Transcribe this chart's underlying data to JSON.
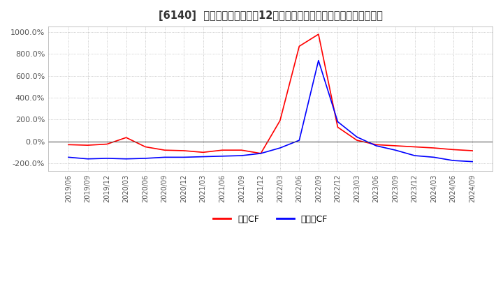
{
  "title": "[6140]  キャッシュフローの12か月移動合計の対前年同期増減率の推移",
  "background_color": "#ffffff",
  "plot_bg_color": "#ffffff",
  "legend_labels": [
    "営業CF",
    "フリーCF"
  ],
  "line_colors": [
    "#ff0000",
    "#0000ff"
  ],
  "ylim": [
    -270,
    1050
  ],
  "yticks": [
    -200,
    0,
    200,
    400,
    600,
    800,
    1000
  ],
  "ytick_labels": [
    "-200.0%",
    "0.0%",
    "200.0%",
    "400.0%",
    "600.0%",
    "800.0%",
    "1000.0%"
  ],
  "dates": [
    "2019/06",
    "2019/09",
    "2019/12",
    "2020/03",
    "2020/06",
    "2020/09",
    "2020/12",
    "2021/03",
    "2021/06",
    "2021/09",
    "2021/12",
    "2022/03",
    "2022/06",
    "2022/09",
    "2022/12",
    "2023/03",
    "2023/06",
    "2023/09",
    "2023/12",
    "2024/03",
    "2024/06",
    "2024/09"
  ],
  "operating_cf": [
    -30,
    -35,
    -25,
    35,
    -50,
    -80,
    -85,
    -100,
    -80,
    -80,
    -110,
    190,
    870,
    980,
    130,
    10,
    -30,
    -40,
    -50,
    -60,
    -75,
    -85
  ],
  "free_cf": [
    -145,
    -160,
    -155,
    -160,
    -155,
    -145,
    -145,
    -140,
    -135,
    -130,
    -110,
    -60,
    10,
    740,
    180,
    40,
    -40,
    -80,
    -130,
    -145,
    -175,
    -185
  ]
}
